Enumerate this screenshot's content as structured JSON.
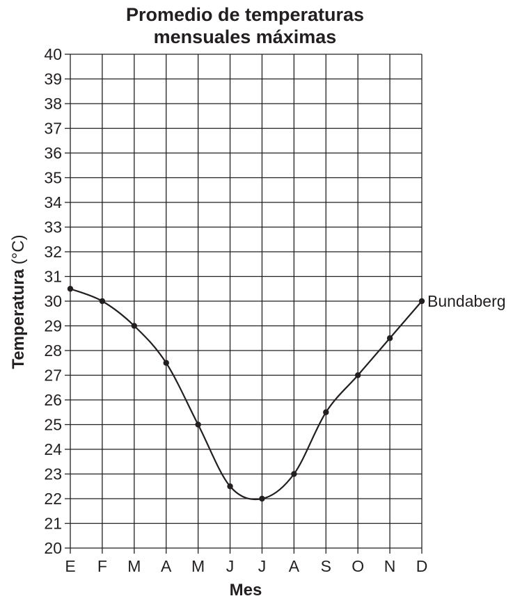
{
  "chart_data": {
    "type": "line",
    "title_line1": "Promedio de temperaturas",
    "title_line2": "mensuales máximas",
    "xlabel": "Mes",
    "ylabel": "Temperatura",
    "ylabel_unit": "(°C)",
    "categories": [
      "E",
      "F",
      "M",
      "A",
      "M",
      "J",
      "J",
      "A",
      "S",
      "O",
      "N",
      "D"
    ],
    "ylim": [
      20,
      40
    ],
    "yticks": [
      20,
      21,
      22,
      23,
      24,
      25,
      26,
      27,
      28,
      29,
      30,
      31,
      32,
      33,
      34,
      35,
      36,
      37,
      38,
      39,
      40
    ],
    "grid": true,
    "series": [
      {
        "name": "Bundaberg",
        "values": [
          30.5,
          30,
          29,
          27.5,
          25,
          22.5,
          22,
          23,
          25.5,
          27,
          28.5,
          30
        ],
        "color": "#231f20"
      }
    ]
  }
}
